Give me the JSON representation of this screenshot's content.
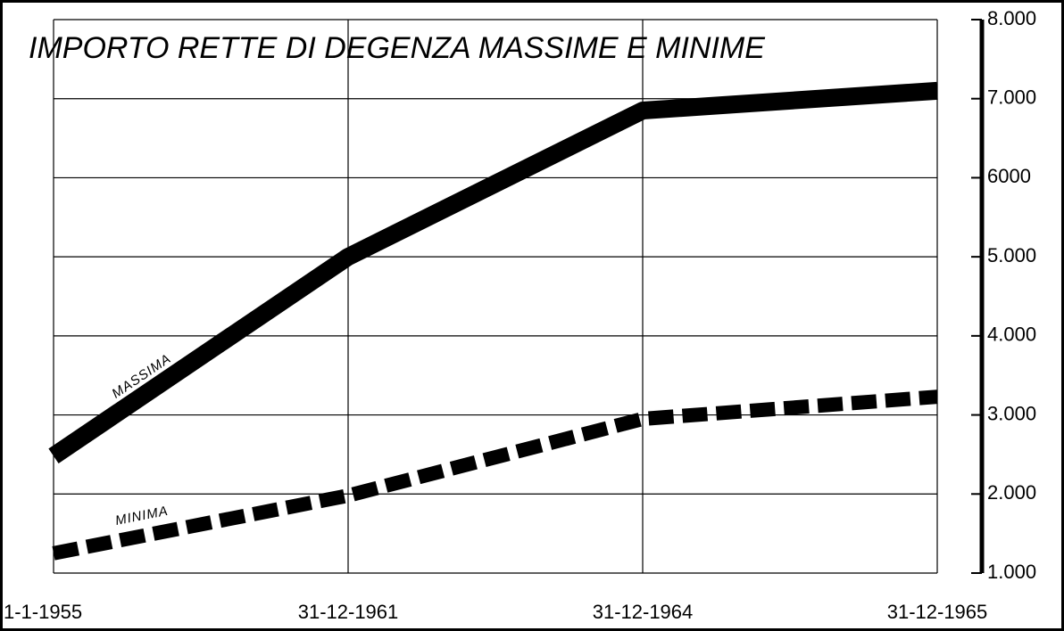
{
  "chart_data": {
    "type": "line",
    "title": "IMPORTO RETTE DI DEGENZA MASSIME E MINIME",
    "categories": [
      "1-1-1955",
      "31-12-1961",
      "31-12-1964",
      "31-12-1965"
    ],
    "series": [
      {
        "name": "MASSIMA",
        "color": "#000000",
        "style": "solid",
        "values": [
          2480,
          5000,
          6850,
          7100
        ]
      },
      {
        "name": "MINIMA",
        "color": "#000000",
        "style": "dashed",
        "values": [
          1250,
          1980,
          2950,
          3230
        ]
      }
    ],
    "ylim": [
      1000,
      8000
    ],
    "yticks": [
      {
        "value": 1000,
        "label": "1.000"
      },
      {
        "value": 2000,
        "label": "2.000"
      },
      {
        "value": 3000,
        "label": "3.000"
      },
      {
        "value": 4000,
        "label": "4.000"
      },
      {
        "value": 5000,
        "label": "5.000"
      },
      6000,
      {
        "value": 7000,
        "label": "7.000"
      },
      {
        "value": 8000,
        "label": "8.000"
      }
    ],
    "y_axis_side": "right",
    "grid": true
  }
}
